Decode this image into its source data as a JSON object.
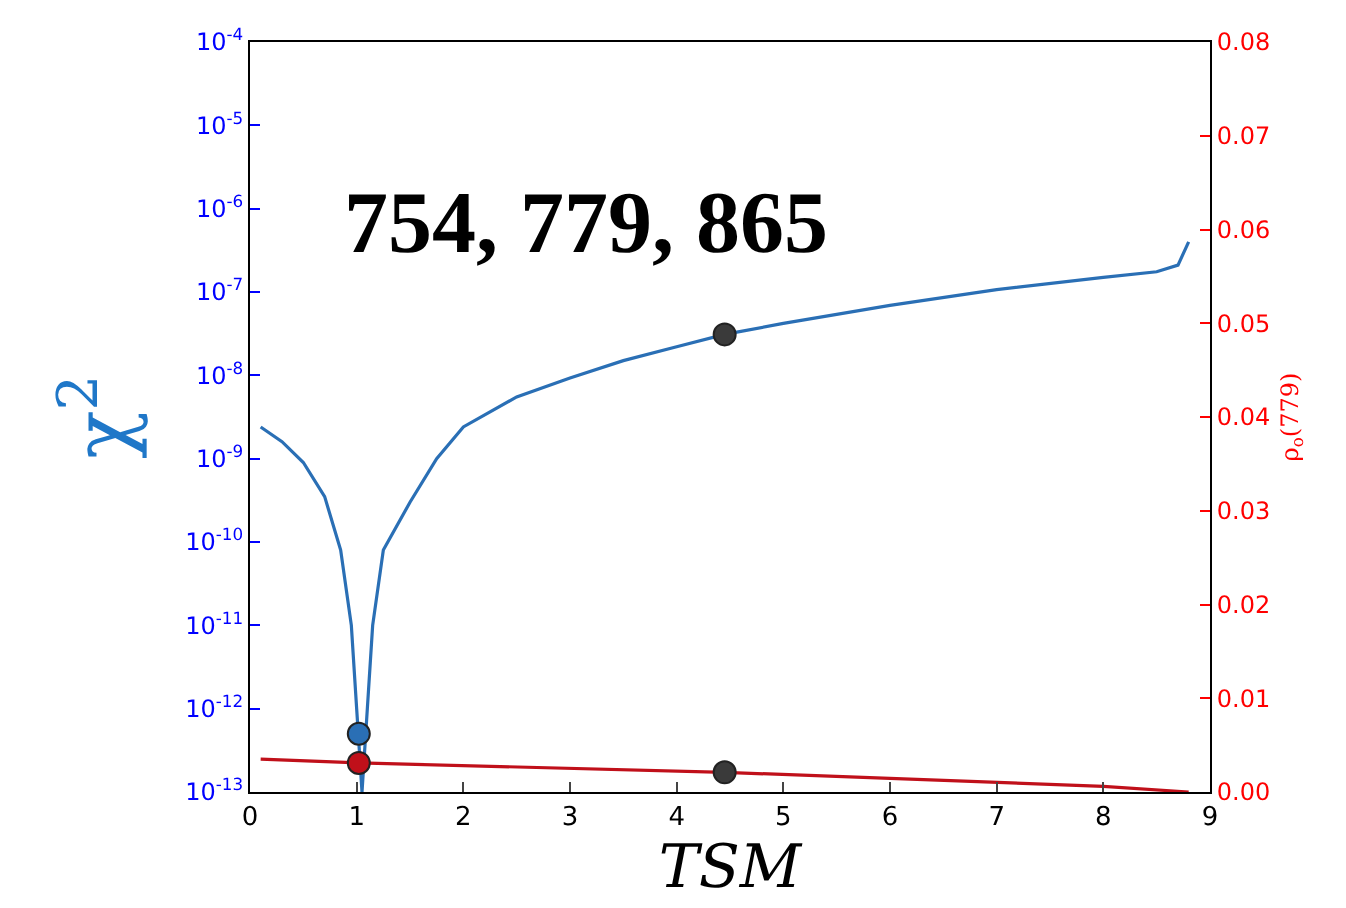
{
  "chart_data": {
    "type": "line",
    "annotations": [
      "754, 779, 865"
    ],
    "xlabel": "TSM",
    "ylabel": "χ$^{2}$",
    "y2label": "ρ$_{o}$(779)",
    "xlim": [
      0,
      9
    ],
    "xticks": [
      0,
      1,
      2,
      3,
      4,
      5,
      6,
      7,
      8,
      9
    ],
    "log": "y",
    "ylim": [
      1e-13,
      0.0001
    ],
    "yticks": [
      {
        "value": 1e-13,
        "label": "10$^{-13}$"
      },
      {
        "value": 1e-12,
        "label": "10$^{-12}$"
      },
      {
        "value": 1e-11,
        "label": "10$^{-11}$"
      },
      {
        "value": 1e-10,
        "label": "10$^{-10}$"
      },
      {
        "value": 1e-09,
        "label": "10$^{-9}$"
      },
      {
        "value": 1e-08,
        "label": "10$^{-8}$"
      },
      {
        "value": 1e-07,
        "label": "10$^{-7}$"
      },
      {
        "value": 1e-06,
        "label": "10$^{-6}$"
      },
      {
        "value": 1e-05,
        "label": "10$^{-5}$"
      },
      {
        "value": 0.0001,
        "label": "10$^{-4}$"
      }
    ],
    "y2lim": [
      0,
      0.08
    ],
    "y2ticks": [
      {
        "value": 0,
        "label": "0.00"
      },
      {
        "value": 0.01,
        "label": "0.01"
      },
      {
        "value": 0.02,
        "label": "0.02"
      },
      {
        "value": 0.03,
        "label": "0.03"
      },
      {
        "value": 0.04,
        "label": "0.04"
      },
      {
        "value": 0.05,
        "label": "0.05"
      },
      {
        "value": 0.06,
        "label": "0.06"
      },
      {
        "value": 0.07,
        "label": "0.07"
      },
      {
        "value": 0.08,
        "label": "0.08"
      }
    ],
    "legend": false,
    "series": [
      {
        "marker": "none",
        "color": "#2a6fb5",
        "x": [
          0.1,
          0.3,
          0.5,
          0.7,
          0.85,
          0.95,
          1.0,
          1.05,
          1.1,
          1.15,
          1.25,
          1.5,
          1.75,
          2.0,
          2.5,
          3.0,
          3.5,
          4.0,
          4.45,
          5.0,
          6.0,
          7.0,
          8.0,
          8.5,
          8.7,
          8.8
        ],
        "values": [
          2.4e-09,
          1.6e-09,
          9e-10,
          3.5e-10,
          8e-11,
          1e-11,
          1e-12,
          1e-13,
          1e-12,
          1e-11,
          8e-11,
          3e-10,
          1e-09,
          2.4e-09,
          5.5e-09,
          9.3e-09,
          1.5e-08,
          2.2e-08,
          3.1e-08,
          4.2e-08,
          6.9e-08,
          1.07e-07,
          1.5e-07,
          1.75e-07,
          2.1e-07,
          4e-07
        ]
      },
      {
        "marker": "none",
        "axis": "y2",
        "color": "#c0101a",
        "x": [
          0.1,
          1.02,
          4.45,
          8.0,
          8.8
        ],
        "values": [
          0.0035,
          0.0031,
          0.0021,
          0.0006,
          0
        ]
      },
      {
        "type": "scatter",
        "marker": "circle",
        "color": "#2a6fb5",
        "x": [
          1.02
        ],
        "values": [
          5e-13
        ]
      },
      {
        "type": "scatter",
        "marker": "circle",
        "axis": "y2",
        "color": "#c0101a",
        "x": [
          1.02
        ],
        "values": [
          0.0031
        ]
      },
      {
        "type": "scatter",
        "marker": "circle",
        "color": "#3a3a3a",
        "x": [
          4.45
        ],
        "values": [
          3.1e-08
        ]
      },
      {
        "type": "scatter",
        "marker": "circle",
        "axis": "y2",
        "color": "#3a3a3a",
        "x": [
          4.45
        ],
        "values": [
          0.0021
        ]
      }
    ]
  }
}
